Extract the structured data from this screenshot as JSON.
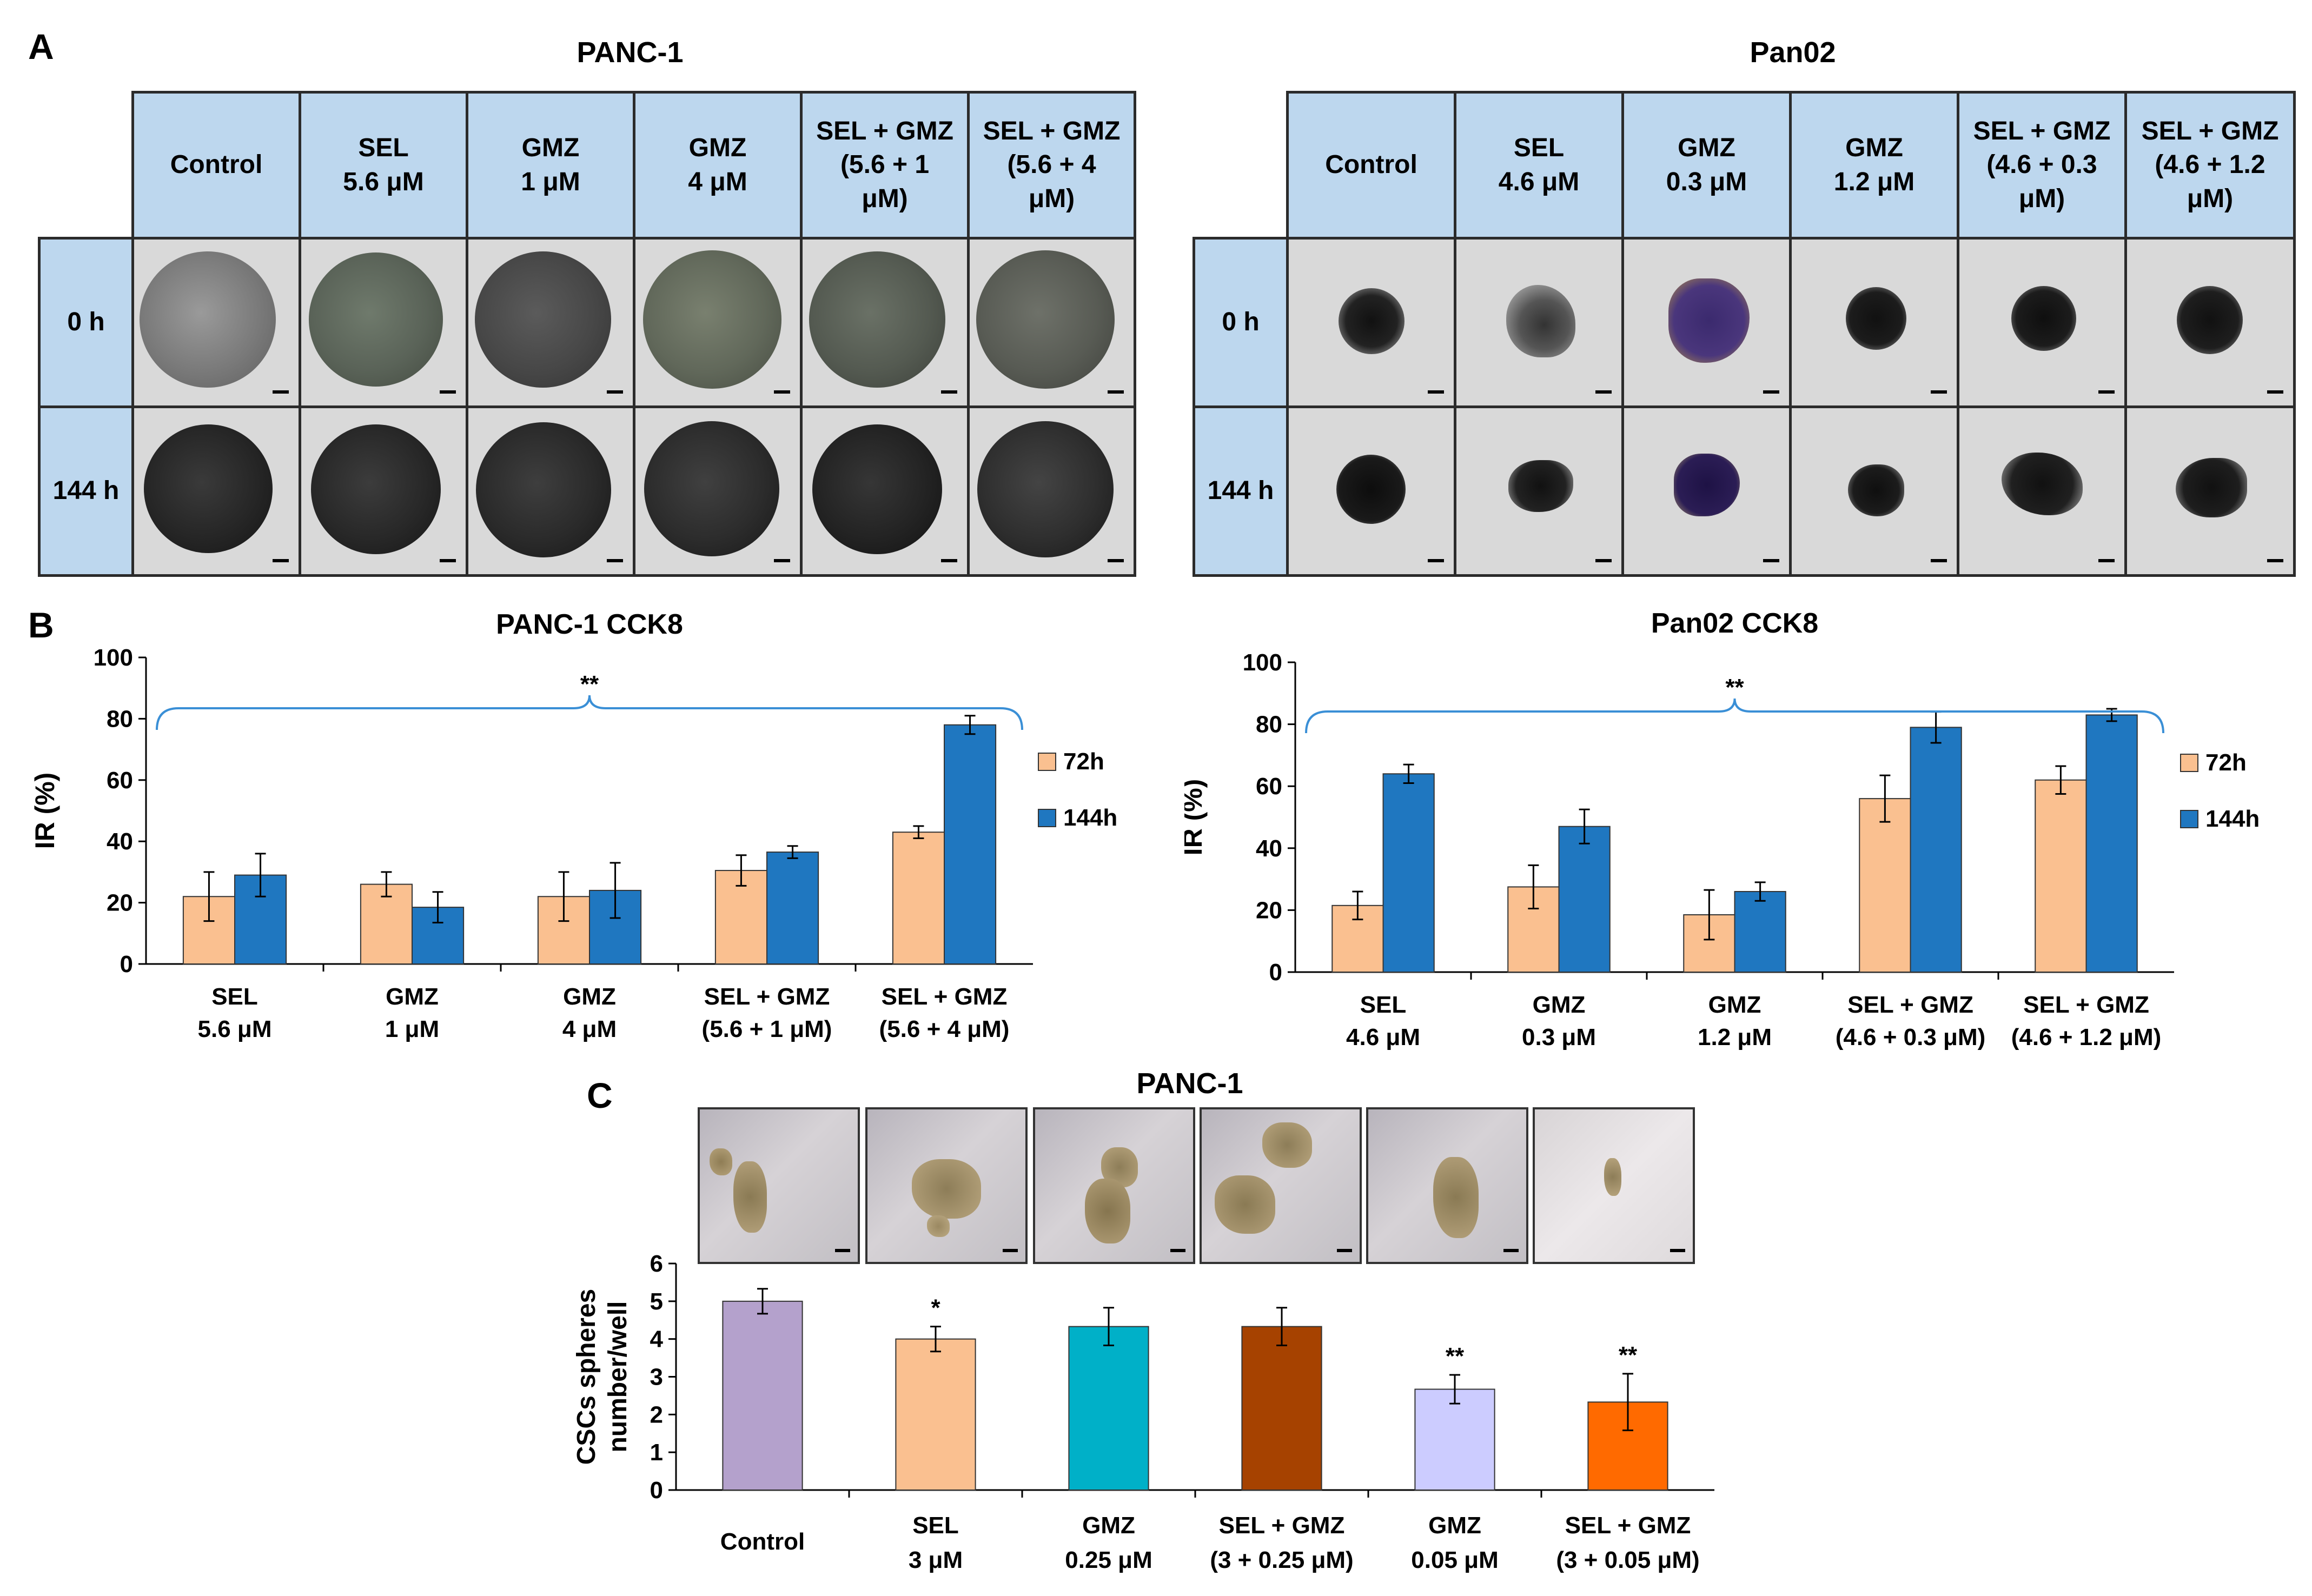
{
  "panels": {
    "a": "A",
    "b": "B",
    "c": "C"
  },
  "panelA": {
    "left": {
      "title": "PANC-1",
      "headers": [
        "Control",
        "SEL\n5.6 μM",
        "GMZ\n1 μM",
        "GMZ\n4 μM",
        "SEL + GMZ\n(5.6 + 1\nμM)",
        "SEL + GMZ\n(5.6 + 4\nμM)"
      ],
      "rows": [
        "0 h",
        "144 h"
      ]
    },
    "right": {
      "title": "Pan02",
      "headers": [
        "Control",
        "SEL\n4.6 μM",
        "GMZ\n0.3 μM",
        "GMZ\n1.2 μM",
        "SEL + GMZ\n(4.6 + 0.3\nμM)",
        "SEL + GMZ\n(4.6 + 1.2\nμM)"
      ],
      "rows": [
        "0 h",
        "144 h"
      ]
    }
  },
  "chart_data": [
    {
      "type": "bar",
      "title": "PANC-1 CCK8",
      "ylabel": "IR (%)",
      "ylim": [
        0,
        100
      ],
      "yticks": [
        "0",
        "20",
        "40",
        "60",
        "80",
        "100"
      ],
      "categories": [
        "SEL\n5.6 μM",
        "GMZ\n1 μM",
        "GMZ\n4 μM",
        "SEL + GMZ\n(5.6 + 1 μM)",
        "SEL + GMZ\n(5.6 + 4 μM)"
      ],
      "series": [
        {
          "name": "72h",
          "color": "#fac090",
          "values": [
            22,
            26,
            22,
            30.5,
            43
          ],
          "errors": [
            8,
            4,
            8,
            5,
            2
          ]
        },
        {
          "name": "144h",
          "color": "#1f77c0",
          "values": [
            29,
            18.5,
            24,
            36.5,
            78
          ],
          "errors": [
            7,
            5,
            9,
            2,
            3
          ]
        }
      ],
      "bracket_label": "**"
    },
    {
      "type": "bar",
      "title": "Pan02 CCK8",
      "ylabel": "IR (%)",
      "ylim": [
        0,
        100
      ],
      "yticks": [
        "0",
        "20",
        "40",
        "60",
        "80",
        "100"
      ],
      "categories": [
        "SEL\n4.6 μM",
        "GMZ\n0.3 μM",
        "GMZ\n1.2 μM",
        "SEL + GMZ\n(4.6 + 0.3 μM)",
        "SEL + GMZ\n(4.6 + 1.2 μM)"
      ],
      "series": [
        {
          "name": "72h",
          "color": "#fac090",
          "values": [
            21.5,
            27.5,
            18.5,
            56,
            62
          ],
          "errors": [
            4.5,
            7,
            8,
            7.5,
            4.5
          ]
        },
        {
          "name": "144h",
          "color": "#1f77c0",
          "values": [
            64,
            47,
            26,
            79,
            83
          ],
          "errors": [
            3,
            5.5,
            3,
            5,
            2
          ]
        }
      ],
      "bracket_label": "**"
    },
    {
      "type": "bar",
      "title": "PANC-1",
      "ylabel": "CSCs spheres\nnumber/well",
      "ylim": [
        0,
        6
      ],
      "yticks": [
        "0",
        "1",
        "2",
        "3",
        "4",
        "5",
        "6"
      ],
      "categories": [
        "Control",
        "SEL\n3 μM",
        "GMZ\n0.25 μM",
        "SEL + GMZ\n(3 +  0.25 μM)",
        "GMZ\n0.05 μM",
        "SEL + GMZ\n(3 +  0.05 μM)"
      ],
      "values": [
        5,
        4,
        4.33,
        4.33,
        2.67,
        2.33
      ],
      "errors": [
        0.33,
        0.33,
        0.5,
        0.5,
        0.38,
        0.75
      ],
      "colors": [
        "#b4a1cc",
        "#fac090",
        "#00b0c8",
        "#a64200",
        "#ccccff",
        "#ff6a00"
      ],
      "significance": [
        "",
        "*",
        "",
        "",
        "**",
        "**"
      ]
    }
  ]
}
